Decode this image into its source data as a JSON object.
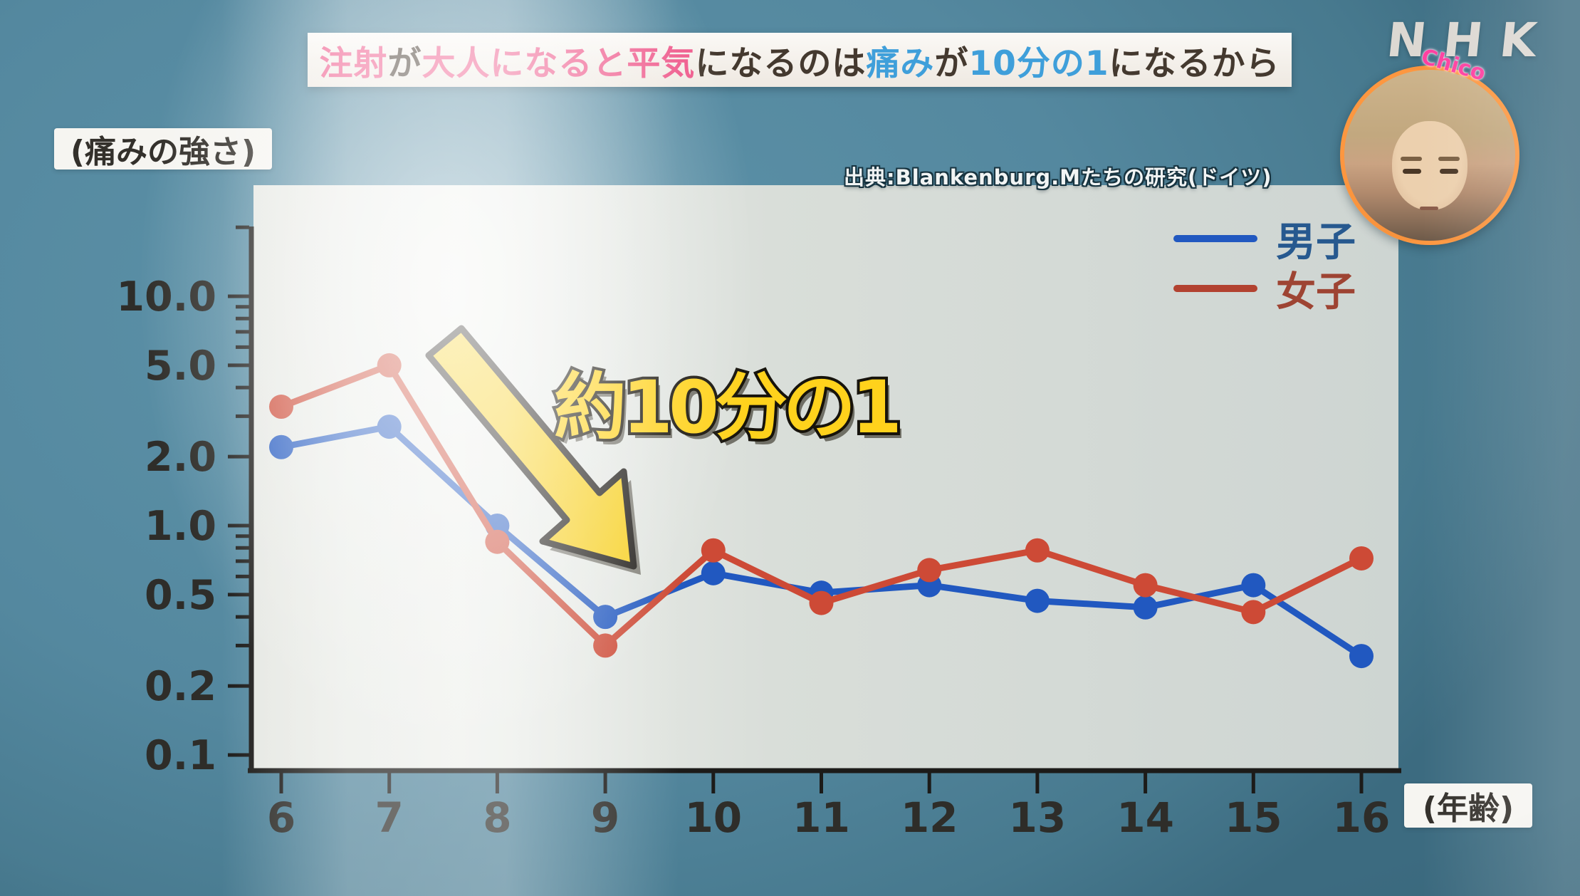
{
  "header": {
    "nhk_logo": "NHK",
    "chico_label": "Chico"
  },
  "banner": {
    "segments": [
      {
        "text": "注射",
        "color": "pink"
      },
      {
        "text": "が",
        "color": "dark"
      },
      {
        "text": "大人になると平気",
        "color": "pink"
      },
      {
        "text": "になるのは",
        "color": "dark"
      },
      {
        "text": "痛み",
        "color": "blue"
      },
      {
        "text": "が",
        "color": "dark"
      },
      {
        "text": "10分の1",
        "color": "blue"
      },
      {
        "text": "になるから",
        "color": "dark"
      }
    ]
  },
  "source_note": "出典:Blankenburg.Mたちの研究(ドイツ)",
  "legend": [
    {
      "label": "男子",
      "line_color": "#2158c0",
      "text_color": "#27598f"
    },
    {
      "label": "女子",
      "line_color": "#b24230",
      "text_color": "#9e4433"
    }
  ],
  "chart_data": {
    "type": "line",
    "title": "",
    "xlabel": "(年齢)",
    "ylabel": "(痛みの強さ)",
    "yscale": "log",
    "ylim": [
      0.1,
      10
    ],
    "grid": false,
    "legend_position": "top-right",
    "x": [
      6,
      7,
      8,
      9,
      10,
      11,
      12,
      13,
      14,
      15,
      16
    ],
    "yticks": [
      {
        "v": 10,
        "label": "10.0"
      },
      {
        "v": 5,
        "label": "5.0"
      },
      {
        "v": 2,
        "label": "2.0"
      },
      {
        "v": 1,
        "label": "1.0"
      },
      {
        "v": 0.5,
        "label": "0.5"
      },
      {
        "v": 0.2,
        "label": "0.2"
      },
      {
        "v": 0.1,
        "label": "0.1"
      }
    ],
    "minor_ticks": [
      20,
      9,
      8,
      7,
      6,
      4,
      3,
      0.9,
      0.8,
      0.7,
      0.6,
      0.4,
      0.3
    ],
    "series": [
      {
        "name": "男子",
        "color": "#2158c0",
        "values": [
          2.2,
          2.7,
          1.0,
          0.4,
          0.62,
          0.51,
          0.55,
          0.47,
          0.44,
          0.55,
          0.27
        ]
      },
      {
        "name": "女子",
        "color": "#cd4a36",
        "values": [
          3.3,
          5.0,
          0.85,
          0.3,
          0.78,
          0.46,
          0.64,
          0.78,
          0.55,
          0.42,
          0.72
        ]
      }
    ],
    "annotation": "約10分の1"
  },
  "colors": {
    "background_teal": "#54889f",
    "plot_background": "#d9ded9",
    "axis": "#1c1b19",
    "tick_label": "#2e2d29",
    "banner_pink": "#ef5a8c",
    "banner_blue": "#3f9fda",
    "banner_dark": "#44392f",
    "annotation_yellow": "#ffd21c",
    "boys_blue": "#2158c0",
    "girls_red": "#cd4a36"
  }
}
